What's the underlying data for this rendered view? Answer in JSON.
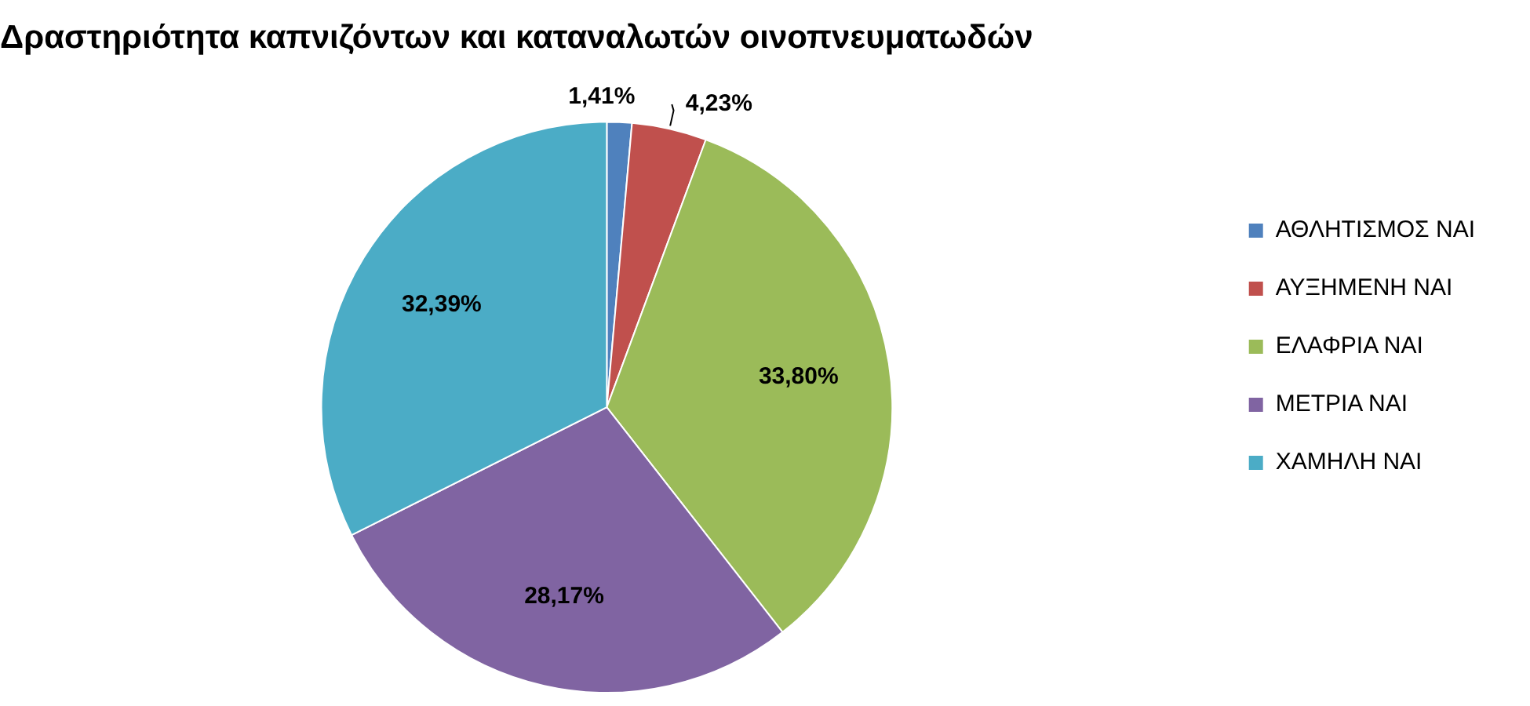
{
  "chart_data": {
    "type": "pie",
    "title": "Δραστηριότητα καπνιζόντων και καταναλωτών οινοπνευματωδών",
    "categories": [
      "ΑΘΛΗΤΙΣΜΟΣ ΝΑΙ",
      "ΑΥΞΗΜΕΝΗ ΝΑΙ",
      "ΕΛΑΦΡΙΑ ΝΑΙ",
      "ΜΕΤΡΙΑ ΝΑΙ",
      "ΧΑΜΗΛΗ ΝΑΙ"
    ],
    "values": [
      1.41,
      4.23,
      33.8,
      28.17,
      32.39
    ],
    "colors": [
      "#4f81bd",
      "#c0504d",
      "#9bbb59",
      "#8064a2",
      "#4bacc6"
    ],
    "value_labels": [
      "1,41%",
      "4,23%",
      "33,80%",
      "28,17%",
      "32,39%"
    ],
    "legend": "right"
  }
}
